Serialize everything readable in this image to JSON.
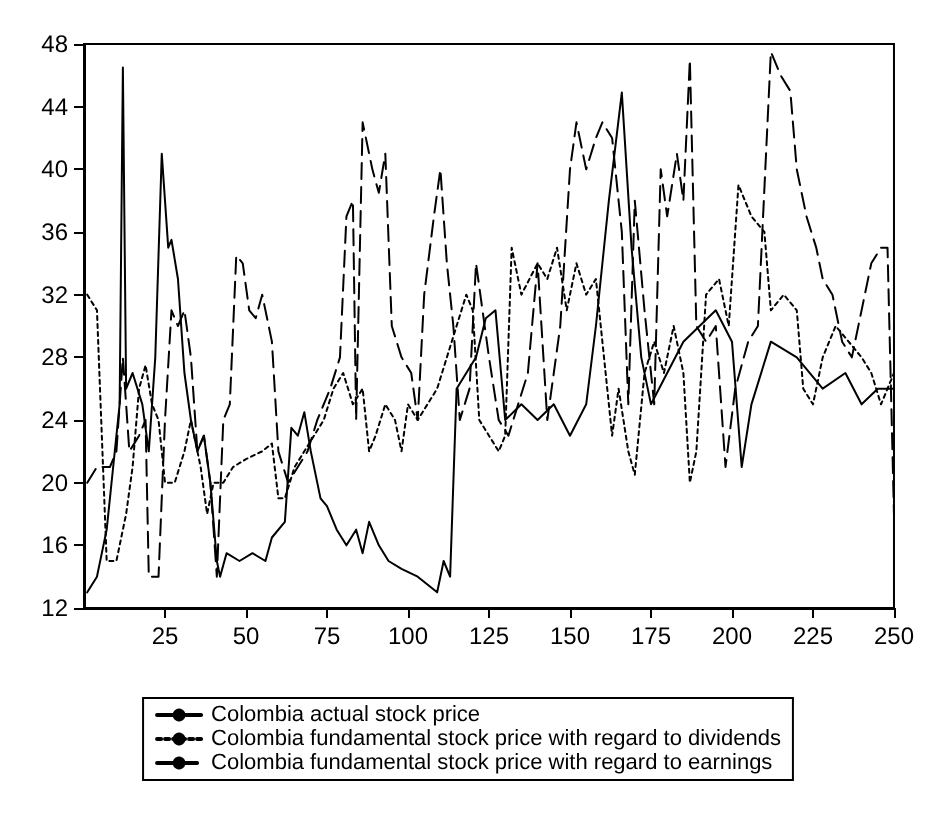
{
  "chart_data": {
    "type": "line",
    "xlim": [
      0,
      250
    ],
    "ylim": [
      12,
      48
    ],
    "xticks": [
      25,
      50,
      75,
      100,
      125,
      150,
      175,
      200,
      225,
      250
    ],
    "yticks": [
      12,
      16,
      20,
      24,
      28,
      32,
      36,
      40,
      44,
      48
    ],
    "grid": false,
    "legend": "bottom",
    "marker": "none",
    "series": [
      {
        "name": "Colombia actual stock price",
        "color": "#000000",
        "line_style": "solid",
        "x": [
          1,
          4,
          7,
          9,
          11,
          12,
          13,
          15,
          18,
          20,
          22,
          24,
          26,
          27,
          29,
          31,
          33,
          35,
          37,
          39,
          41,
          42,
          44,
          48,
          52,
          56,
          58,
          62,
          64,
          66,
          68,
          70,
          73,
          75,
          78,
          81,
          84,
          86,
          88,
          91,
          94,
          98,
          103,
          106,
          109,
          111,
          113,
          115,
          118,
          121,
          124,
          127,
          130,
          135,
          140,
          145,
          150,
          155,
          158,
          162,
          166,
          169,
          172,
          175,
          180,
          185,
          190,
          195,
          200,
          203,
          206,
          212,
          220,
          228,
          235,
          240,
          245,
          250
        ],
        "values": [
          13,
          14,
          17,
          21,
          25,
          46.5,
          26,
          27,
          25,
          22,
          28,
          41,
          35,
          35.5,
          33,
          27,
          24,
          22,
          23,
          20,
          15,
          14,
          15.5,
          15,
          15.5,
          15,
          16.5,
          17.5,
          23.5,
          23,
          24.5,
          22,
          19,
          18.5,
          17,
          16,
          17,
          15.5,
          17.5,
          16,
          15,
          14.5,
          14,
          13.5,
          13,
          15,
          14,
          26,
          27,
          28,
          30.5,
          31,
          24,
          25,
          24,
          25,
          23,
          25,
          30,
          38,
          44.9,
          35,
          28,
          25,
          27,
          29,
          30,
          31,
          29,
          21,
          25,
          29,
          28,
          26,
          27,
          25,
          26,
          26
        ]
      },
      {
        "name": "Colombia fundamental stock price with regard to dividends",
        "color": "#000000",
        "line_style": "dotted",
        "x": [
          1,
          4,
          7,
          10,
          13,
          15,
          17,
          19,
          21,
          23,
          25,
          28,
          31,
          33,
          36,
          38,
          40,
          43,
          46,
          50,
          55,
          58,
          60,
          62,
          65,
          68,
          71,
          74,
          77,
          80,
          83,
          86,
          88,
          90,
          93,
          96,
          98,
          100,
          103,
          106,
          109,
          112,
          115,
          118,
          120,
          122,
          125,
          128,
          130,
          132,
          135,
          140,
          143,
          146,
          149,
          152,
          155,
          158,
          161,
          163,
          165,
          168,
          170,
          173,
          176,
          179,
          182,
          185,
          187,
          189,
          192,
          196,
          199,
          202,
          206,
          210,
          212,
          216,
          220,
          222,
          225,
          228,
          232,
          236,
          240,
          243,
          246,
          250
        ],
        "values": [
          32,
          31,
          15,
          15,
          18,
          21,
          26,
          27.5,
          25,
          24,
          20,
          20,
          22,
          24,
          21,
          18,
          20,
          20,
          21,
          21.5,
          22,
          22.5,
          19,
          19,
          21,
          22,
          23,
          24,
          26,
          27,
          25,
          26,
          22,
          23,
          25,
          24,
          22,
          25,
          24,
          25,
          26,
          28,
          30,
          32,
          31,
          24,
          23,
          22,
          23,
          35,
          32,
          34,
          33,
          35,
          31,
          34,
          32,
          33,
          27,
          23,
          26,
          22,
          20.5,
          27,
          29,
          27,
          30,
          27,
          20,
          22,
          32,
          33,
          30,
          39,
          37,
          36,
          31,
          32,
          31,
          26,
          25,
          28,
          30,
          29,
          28,
          27,
          25,
          27
        ]
      },
      {
        "name": "Colombia fundamental stock price with regard to earnings",
        "color": "#000000",
        "line_style": "dashed",
        "x": [
          1,
          4,
          8,
          10,
          12,
          14,
          17,
          19,
          20,
          23,
          25,
          27,
          29,
          31,
          33,
          35,
          37,
          39,
          41,
          43,
          45,
          47,
          49,
          51,
          53,
          55,
          58,
          60,
          63,
          66,
          69,
          72,
          76,
          79,
          81,
          83,
          84,
          86,
          89,
          91,
          93,
          95,
          98,
          101,
          103,
          105,
          108,
          110,
          112,
          114,
          116,
          119,
          121,
          125,
          128,
          131,
          134,
          137,
          140,
          143,
          147,
          150,
          152,
          155,
          158,
          160,
          163,
          166,
          168,
          170,
          173,
          176,
          178,
          180,
          183,
          185,
          187,
          189,
          192,
          195,
          198,
          201,
          205,
          208,
          212,
          215,
          218,
          220,
          223,
          226,
          228,
          231,
          234,
          237,
          240,
          243,
          246,
          248,
          250
        ],
        "values": [
          20,
          21,
          21,
          22,
          28,
          22,
          23,
          24,
          14,
          14,
          24,
          31,
          30,
          31,
          28,
          22,
          23,
          20,
          14,
          24,
          25,
          34.5,
          34,
          31,
          30.5,
          32,
          29,
          22,
          20,
          21,
          22,
          24,
          26,
          28,
          37,
          38,
          24,
          43,
          40,
          38.5,
          41,
          30,
          28,
          27,
          24,
          32,
          37,
          40,
          34,
          30,
          24,
          26,
          34,
          28,
          24,
          23,
          25,
          27,
          34,
          24,
          30,
          40,
          43,
          40,
          42,
          43,
          42,
          36,
          25,
          38,
          31,
          25,
          40,
          37,
          41,
          38,
          47,
          30,
          29,
          30,
          21,
          26,
          29,
          30,
          47.5,
          46,
          45,
          40,
          37,
          35,
          33,
          32,
          29,
          28,
          31,
          34,
          35,
          35,
          18
        ]
      }
    ]
  }
}
